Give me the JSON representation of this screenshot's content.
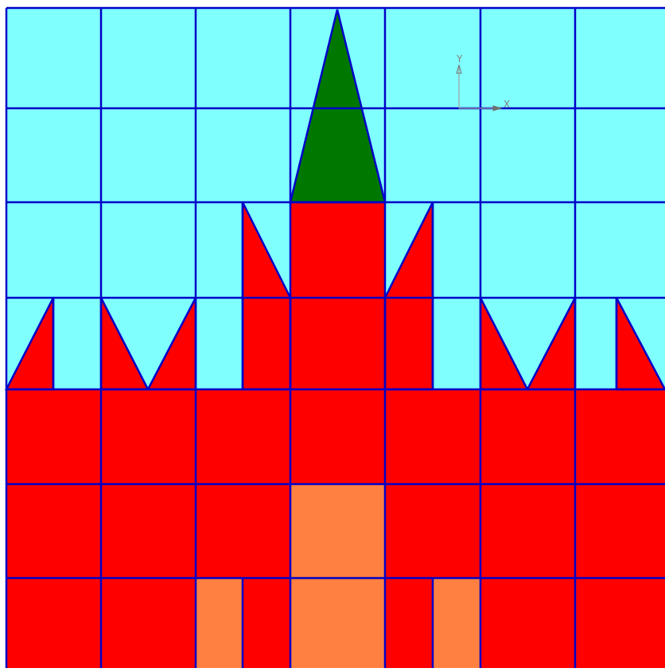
{
  "colors": {
    "sky": "#80ffff",
    "wall": "#ff0000",
    "spire": "#007800",
    "door": "#ff8040",
    "grid": "#0000c8",
    "axis": "#a0a0a0",
    "axis_arrow": "#707070"
  },
  "axes_indicator": {
    "x_label": "X",
    "y_label": "Y"
  }
}
